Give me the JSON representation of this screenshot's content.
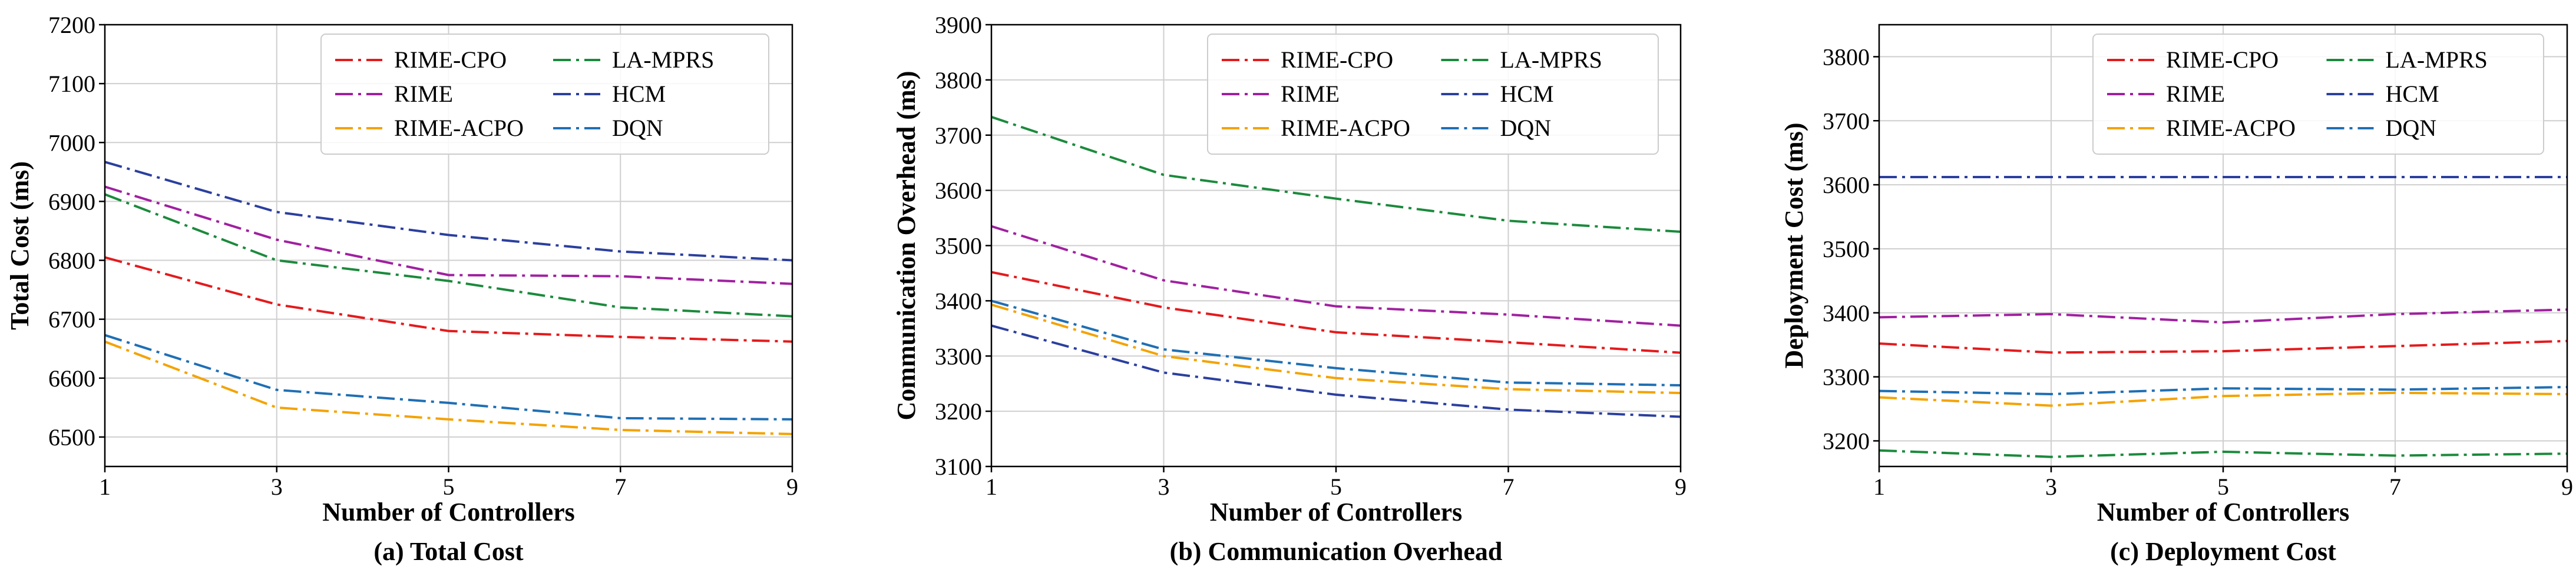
{
  "figure": {
    "legend_position": "upper-center",
    "grid": true
  },
  "chart_data": [
    {
      "type": "line",
      "panel": "a",
      "title": "(a) Total Cost",
      "xlabel": "Number of Controllers",
      "ylabel": "Total Cost (ms)",
      "x": [
        1,
        3,
        5,
        7,
        9
      ],
      "xlim": [
        1,
        9
      ],
      "xticks": [
        "1",
        "3",
        "5",
        "7",
        "9"
      ],
      "ylim": [
        6450,
        7200
      ],
      "yticks": [
        6500,
        6600,
        6700,
        6800,
        6900,
        7000,
        7100,
        7200
      ],
      "series": [
        {
          "name": "RIME-CPO",
          "color": "#e41a1c",
          "values": [
            6805,
            6725,
            6680,
            6670,
            6662
          ]
        },
        {
          "name": "LA-MPRS",
          "color": "#1b8a3c",
          "values": [
            6912,
            6800,
            6765,
            6720,
            6705
          ]
        },
        {
          "name": "RIME",
          "color": "#a020a0",
          "values": [
            6925,
            6835,
            6775,
            6773,
            6760
          ]
        },
        {
          "name": "HCM",
          "color": "#2b3f9e",
          "values": [
            6967,
            6882,
            6843,
            6815,
            6800
          ]
        },
        {
          "name": "RIME-ACPO",
          "color": "#f4a300",
          "values": [
            6662,
            6550,
            6530,
            6512,
            6505
          ]
        },
        {
          "name": "DQN",
          "color": "#1f6fb4",
          "values": [
            6673,
            6580,
            6558,
            6532,
            6530
          ]
        }
      ]
    },
    {
      "type": "line",
      "panel": "b",
      "title": "(b) Communication Overhead",
      "xlabel": "Number of Controllers",
      "ylabel": "Communication Overhead (ms)",
      "x": [
        1,
        3,
        5,
        7,
        9
      ],
      "xlim": [
        1,
        9
      ],
      "xticks": [
        "1",
        "3",
        "5",
        "7",
        "9"
      ],
      "ylim": [
        3100,
        3900
      ],
      "yticks": [
        3100,
        3200,
        3300,
        3400,
        3500,
        3600,
        3700,
        3800,
        3900
      ],
      "series": [
        {
          "name": "RIME-CPO",
          "color": "#e41a1c",
          "values": [
            3452,
            3388,
            3343,
            3325,
            3306
          ]
        },
        {
          "name": "LA-MPRS",
          "color": "#1b8a3c",
          "values": [
            3733,
            3628,
            3585,
            3545,
            3525
          ]
        },
        {
          "name": "RIME",
          "color": "#a020a0",
          "values": [
            3535,
            3437,
            3390,
            3375,
            3355
          ]
        },
        {
          "name": "HCM",
          "color": "#2b3f9e",
          "values": [
            3355,
            3270,
            3230,
            3203,
            3190
          ]
        },
        {
          "name": "RIME-ACPO",
          "color": "#f4a300",
          "values": [
            3393,
            3300,
            3260,
            3240,
            3233
          ]
        },
        {
          "name": "DQN",
          "color": "#1f6fb4",
          "values": [
            3400,
            3312,
            3278,
            3252,
            3247
          ]
        }
      ]
    },
    {
      "type": "line",
      "panel": "c",
      "title": "(c) Deployment Cost",
      "xlabel": "Number of Controllers",
      "ylabel": "Deployment Cost (ms)",
      "x": [
        1,
        3,
        5,
        7,
        9
      ],
      "xlim": [
        1,
        9
      ],
      "xticks": [
        "1",
        "3",
        "5",
        "7",
        "9"
      ],
      "ylim": [
        3160,
        3850
      ],
      "yticks": [
        3200,
        3300,
        3400,
        3500,
        3600,
        3700,
        3800
      ],
      "series": [
        {
          "name": "RIME-CPO",
          "color": "#e41a1c",
          "values": [
            3352,
            3338,
            3340,
            3348,
            3356
          ]
        },
        {
          "name": "LA-MPRS",
          "color": "#1b8a3c",
          "values": [
            3185,
            3175,
            3183,
            3177,
            3180
          ]
        },
        {
          "name": "RIME",
          "color": "#a020a0",
          "values": [
            3393,
            3398,
            3385,
            3398,
            3405
          ]
        },
        {
          "name": "HCM",
          "color": "#2b3f9e",
          "values": [
            3612,
            3612,
            3612,
            3612,
            3612
          ]
        },
        {
          "name": "RIME-ACPO",
          "color": "#f4a300",
          "values": [
            3268,
            3255,
            3270,
            3275,
            3273
          ]
        },
        {
          "name": "DQN",
          "color": "#1f6fb4",
          "values": [
            3278,
            3273,
            3282,
            3280,
            3284
          ]
        }
      ]
    }
  ]
}
